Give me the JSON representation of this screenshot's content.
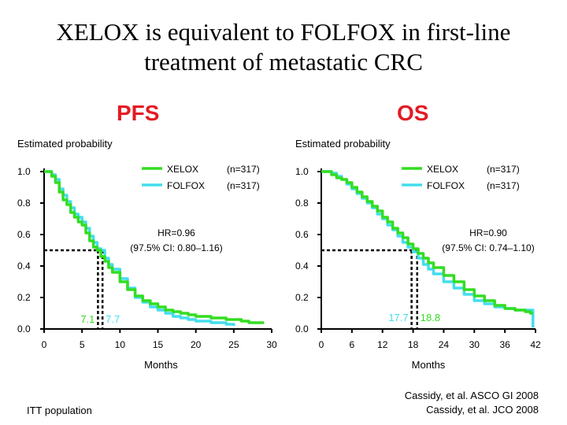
{
  "title_line1": "XELOX is equivalent to FOLFOX in first-line",
  "title_line2": "treatment of metastatic CRC",
  "footnote": "ITT population",
  "citations": [
    "Cassidy, et al. ASCO GI 2008",
    "Cassidy, et al. JCO 2008"
  ],
  "colors": {
    "xelox": "#33dd22",
    "folfox": "#44ddee",
    "title_accent": "#e31b23"
  },
  "chart_data": [
    {
      "type": "line",
      "title": "PFS",
      "ylabel": "Estimated probability",
      "xlabel": "Months",
      "xlim": [
        0,
        30
      ],
      "ylim": [
        0,
        1
      ],
      "xticks": [
        0,
        5,
        10,
        15,
        20,
        25,
        30
      ],
      "yticks": [
        "0.0",
        "0.2",
        "0.4",
        "0.6",
        "0.8",
        "1.0"
      ],
      "legend": [
        {
          "name": "XELOX",
          "n": "(n=317)"
        },
        {
          "name": "FOLFOX",
          "n": "(n=317)"
        }
      ],
      "hr_line1": "HR=0.96",
      "hr_line2": "(97.5% CI: 0.80–1.16)",
      "medians": [
        {
          "value": 7.1,
          "label": "7.1"
        },
        {
          "value": 7.7,
          "label": "7.7"
        }
      ],
      "series": [
        {
          "name": "XELOX",
          "x": [
            0,
            0.5,
            1,
            1.5,
            2,
            2.5,
            3,
            3.5,
            4,
            4.5,
            5,
            5.5,
            6,
            6.5,
            7,
            7.5,
            8,
            8.5,
            9,
            10,
            11,
            12,
            13,
            14,
            15,
            16,
            17,
            18,
            19,
            20,
            22,
            24,
            26,
            27,
            28,
            29
          ],
          "y": [
            1,
            1,
            0.97,
            0.93,
            0.87,
            0.82,
            0.79,
            0.74,
            0.71,
            0.68,
            0.66,
            0.61,
            0.56,
            0.52,
            0.5,
            0.46,
            0.43,
            0.39,
            0.36,
            0.3,
            0.25,
            0.21,
            0.18,
            0.16,
            0.14,
            0.12,
            0.11,
            0.1,
            0.09,
            0.08,
            0.07,
            0.06,
            0.05,
            0.04,
            0.04,
            0.04
          ]
        },
        {
          "name": "FOLFOX",
          "x": [
            0,
            0.5,
            1,
            1.5,
            2,
            2.5,
            3,
            3.5,
            4,
            4.5,
            5,
            5.5,
            6,
            6.5,
            7,
            7.5,
            8,
            8.5,
            9,
            10,
            11,
            12,
            13,
            14,
            15,
            16,
            17,
            18,
            19,
            20,
            22,
            24,
            25
          ],
          "y": [
            1,
            1,
            0.98,
            0.95,
            0.89,
            0.85,
            0.81,
            0.77,
            0.73,
            0.71,
            0.68,
            0.64,
            0.59,
            0.55,
            0.51,
            0.5,
            0.45,
            0.41,
            0.38,
            0.32,
            0.26,
            0.2,
            0.17,
            0.14,
            0.12,
            0.1,
            0.08,
            0.07,
            0.06,
            0.05,
            0.04,
            0.03,
            0.02
          ]
        }
      ]
    },
    {
      "type": "line",
      "title": "OS",
      "ylabel": "Estimated probability",
      "xlabel": "Months",
      "xlim": [
        0,
        42
      ],
      "ylim": [
        0,
        1
      ],
      "xticks": [
        0,
        6,
        12,
        18,
        24,
        30,
        36,
        42
      ],
      "yticks": [
        "0.0",
        "0.2",
        "0.4",
        "0.6",
        "0.8",
        "1.0"
      ],
      "legend": [
        {
          "name": "XELOX",
          "n": "(n=317)"
        },
        {
          "name": "FOLFOX",
          "n": "(n=317)"
        }
      ],
      "hr_line1": "HR=0.90",
      "hr_line2": "(97.5% CI: 0.74–1.10)",
      "medians": [
        {
          "value": 17.7,
          "label": "17.7"
        },
        {
          "value": 18.8,
          "label": "18.8"
        }
      ],
      "series": [
        {
          "name": "XELOX",
          "x": [
            0,
            1,
            2,
            3,
            4,
            5,
            6,
            7,
            8,
            9,
            10,
            11,
            12,
            13,
            14,
            15,
            16,
            17,
            18,
            19,
            20,
            21,
            22,
            24,
            26,
            28,
            30,
            32,
            34,
            36,
            38,
            40,
            41,
            41.5
          ],
          "y": [
            1,
            1,
            0.98,
            0.96,
            0.95,
            0.93,
            0.9,
            0.87,
            0.84,
            0.81,
            0.78,
            0.75,
            0.71,
            0.68,
            0.64,
            0.61,
            0.58,
            0.54,
            0.51,
            0.48,
            0.45,
            0.42,
            0.39,
            0.34,
            0.3,
            0.25,
            0.21,
            0.18,
            0.15,
            0.13,
            0.12,
            0.11,
            0.1,
            0.1
          ]
        },
        {
          "name": "FOLFOX",
          "x": [
            0,
            1,
            2,
            3,
            4,
            5,
            6,
            7,
            8,
            9,
            10,
            11,
            12,
            13,
            14,
            15,
            16,
            17,
            18,
            19,
            20,
            21,
            22,
            24,
            26,
            28,
            30,
            32,
            34,
            36,
            38,
            40,
            41,
            41.5,
            41.5
          ],
          "y": [
            1,
            1,
            0.99,
            0.97,
            0.95,
            0.92,
            0.89,
            0.86,
            0.83,
            0.8,
            0.77,
            0.73,
            0.7,
            0.66,
            0.63,
            0.59,
            0.55,
            0.52,
            0.49,
            0.45,
            0.41,
            0.38,
            0.35,
            0.3,
            0.26,
            0.22,
            0.18,
            0.16,
            0.14,
            0.13,
            0.12,
            0.12,
            0.12,
            0.12,
            0.01
          ]
        }
      ]
    }
  ]
}
